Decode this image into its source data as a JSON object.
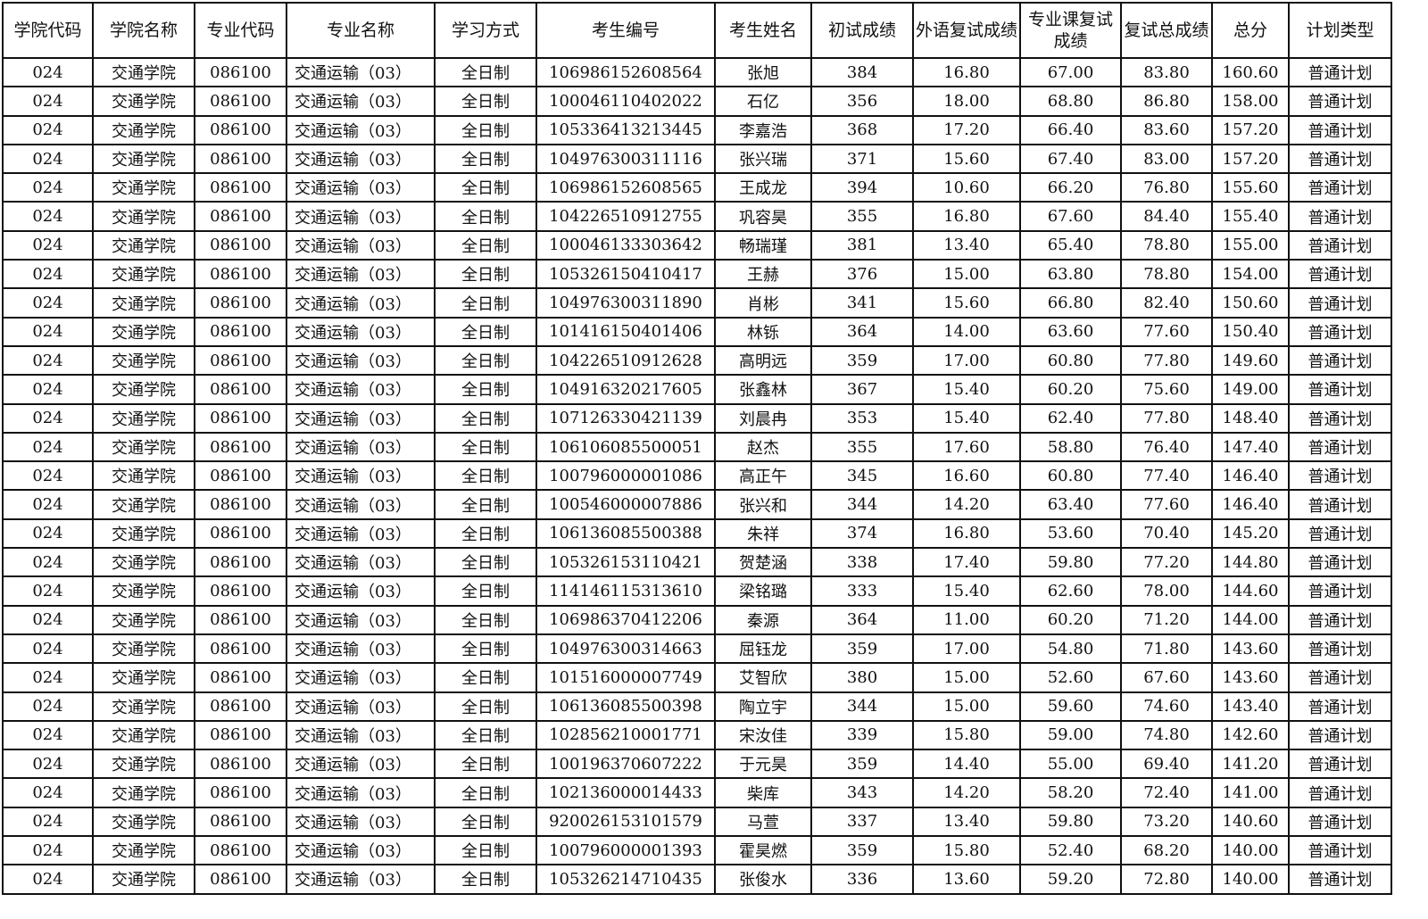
{
  "headers": [
    "学院代码",
    "学院名称",
    "专业代码",
    "专业名称",
    "学习方式",
    "考生编号",
    "考生姓名",
    "初试成绩",
    "外语复试成绩",
    "专业课复试成绩",
    "复试总成绩",
    "总分",
    "计划类型"
  ],
  "rows": [
    [
      "024",
      "交通学院",
      "086100",
      "交通运输（03）",
      "全日制",
      "106986152608564",
      "张旭",
      "384",
      "16.80",
      "67.00",
      "83.80",
      "160.60",
      "普通计划"
    ],
    [
      "024",
      "交通学院",
      "086100",
      "交通运输（03）",
      "全日制",
      "100046110402022",
      "石亿",
      "356",
      "18.00",
      "68.80",
      "86.80",
      "158.00",
      "普通计划"
    ],
    [
      "024",
      "交通学院",
      "086100",
      "交通运输（03）",
      "全日制",
      "105336413213445",
      "李嘉浩",
      "368",
      "17.20",
      "66.40",
      "83.60",
      "157.20",
      "普通计划"
    ],
    [
      "024",
      "交通学院",
      "086100",
      "交通运输（03）",
      "全日制",
      "104976300311116",
      "张兴瑞",
      "371",
      "15.60",
      "67.40",
      "83.00",
      "157.20",
      "普通计划"
    ],
    [
      "024",
      "交通学院",
      "086100",
      "交通运输（03）",
      "全日制",
      "106986152608565",
      "王成龙",
      "394",
      "10.60",
      "66.20",
      "76.80",
      "155.60",
      "普通计划"
    ],
    [
      "024",
      "交通学院",
      "086100",
      "交通运输（03）",
      "全日制",
      "104226510912755",
      "巩容昊",
      "355",
      "16.80",
      "67.60",
      "84.40",
      "155.40",
      "普通计划"
    ],
    [
      "024",
      "交通学院",
      "086100",
      "交通运输（03）",
      "全日制",
      "100046133303642",
      "畅瑞瑾",
      "381",
      "13.40",
      "65.40",
      "78.80",
      "155.00",
      "普通计划"
    ],
    [
      "024",
      "交通学院",
      "086100",
      "交通运输（03）",
      "全日制",
      "105326150410417",
      "王赫",
      "376",
      "15.00",
      "63.80",
      "78.80",
      "154.00",
      "普通计划"
    ],
    [
      "024",
      "交通学院",
      "086100",
      "交通运输（03）",
      "全日制",
      "104976300311890",
      "肖彬",
      "341",
      "15.60",
      "66.80",
      "82.40",
      "150.60",
      "普通计划"
    ],
    [
      "024",
      "交通学院",
      "086100",
      "交通运输（03）",
      "全日制",
      "101416150401406",
      "林铄",
      "364",
      "14.00",
      "63.60",
      "77.60",
      "150.40",
      "普通计划"
    ],
    [
      "024",
      "交通学院",
      "086100",
      "交通运输（03）",
      "全日制",
      "104226510912628",
      "高明远",
      "359",
      "17.00",
      "60.80",
      "77.80",
      "149.60",
      "普通计划"
    ],
    [
      "024",
      "交通学院",
      "086100",
      "交通运输（03）",
      "全日制",
      "104916320217605",
      "张鑫林",
      "367",
      "15.40",
      "60.20",
      "75.60",
      "149.00",
      "普通计划"
    ],
    [
      "024",
      "交通学院",
      "086100",
      "交通运输（03）",
      "全日制",
      "107126330421139",
      "刘晨冉",
      "353",
      "15.40",
      "62.40",
      "77.80",
      "148.40",
      "普通计划"
    ],
    [
      "024",
      "交通学院",
      "086100",
      "交通运输（03）",
      "全日制",
      "106106085500051",
      "赵杰",
      "355",
      "17.60",
      "58.80",
      "76.40",
      "147.40",
      "普通计划"
    ],
    [
      "024",
      "交通学院",
      "086100",
      "交通运输（03）",
      "全日制",
      "100796000001086",
      "高正午",
      "345",
      "16.60",
      "60.80",
      "77.40",
      "146.40",
      "普通计划"
    ],
    [
      "024",
      "交通学院",
      "086100",
      "交通运输（03）",
      "全日制",
      "100546000007886",
      "张兴和",
      "344",
      "14.20",
      "63.40",
      "77.60",
      "146.40",
      "普通计划"
    ],
    [
      "024",
      "交通学院",
      "086100",
      "交通运输（03）",
      "全日制",
      "106136085500388",
      "朱祥",
      "374",
      "16.80",
      "53.60",
      "70.40",
      "145.20",
      "普通计划"
    ],
    [
      "024",
      "交通学院",
      "086100",
      "交通运输（03）",
      "全日制",
      "105326153110421",
      "贺楚涵",
      "338",
      "17.40",
      "59.80",
      "77.20",
      "144.80",
      "普通计划"
    ],
    [
      "024",
      "交通学院",
      "086100",
      "交通运输（03）",
      "全日制",
      "114146115313610",
      "梁铭璐",
      "333",
      "15.40",
      "62.60",
      "78.00",
      "144.60",
      "普通计划"
    ],
    [
      "024",
      "交通学院",
      "086100",
      "交通运输（03）",
      "全日制",
      "106986370412206",
      "秦源",
      "364",
      "11.00",
      "60.20",
      "71.20",
      "144.00",
      "普通计划"
    ],
    [
      "024",
      "交通学院",
      "086100",
      "交通运输（03）",
      "全日制",
      "104976300314663",
      "屈钰龙",
      "359",
      "17.00",
      "54.80",
      "71.80",
      "143.60",
      "普通计划"
    ],
    [
      "024",
      "交通学院",
      "086100",
      "交通运输（03）",
      "全日制",
      "101516000007749",
      "艾智欣",
      "380",
      "15.00",
      "52.60",
      "67.60",
      "143.60",
      "普通计划"
    ],
    [
      "024",
      "交通学院",
      "086100",
      "交通运输（03）",
      "全日制",
      "106136085500398",
      "陶立宇",
      "344",
      "15.00",
      "59.60",
      "74.60",
      "143.40",
      "普通计划"
    ],
    [
      "024",
      "交通学院",
      "086100",
      "交通运输（03）",
      "全日制",
      "102856210001771",
      "宋汝佳",
      "339",
      "15.80",
      "59.00",
      "74.80",
      "142.60",
      "普通计划"
    ],
    [
      "024",
      "交通学院",
      "086100",
      "交通运输（03）",
      "全日制",
      "100196370607222",
      "于元昊",
      "359",
      "14.40",
      "55.00",
      "69.40",
      "141.20",
      "普通计划"
    ],
    [
      "024",
      "交通学院",
      "086100",
      "交通运输（03）",
      "全日制",
      "102136000014433",
      "柴库",
      "343",
      "14.20",
      "58.20",
      "72.40",
      "141.00",
      "普通计划"
    ],
    [
      "024",
      "交通学院",
      "086100",
      "交通运输（03）",
      "全日制",
      "920026153101579",
      "马萱",
      "337",
      "13.40",
      "59.80",
      "73.20",
      "140.60",
      "普通计划"
    ],
    [
      "024",
      "交通学院",
      "086100",
      "交通运输（03）",
      "全日制",
      "100796000001393",
      "霍昊燃",
      "359",
      "15.80",
      "52.40",
      "68.20",
      "140.00",
      "普通计划"
    ],
    [
      "024",
      "交通学院",
      "086100",
      "交通运输（03）",
      "全日制",
      "105326214710435",
      "张俊水",
      "336",
      "13.60",
      "59.20",
      "72.80",
      "140.00",
      "普通计划"
    ]
  ]
}
